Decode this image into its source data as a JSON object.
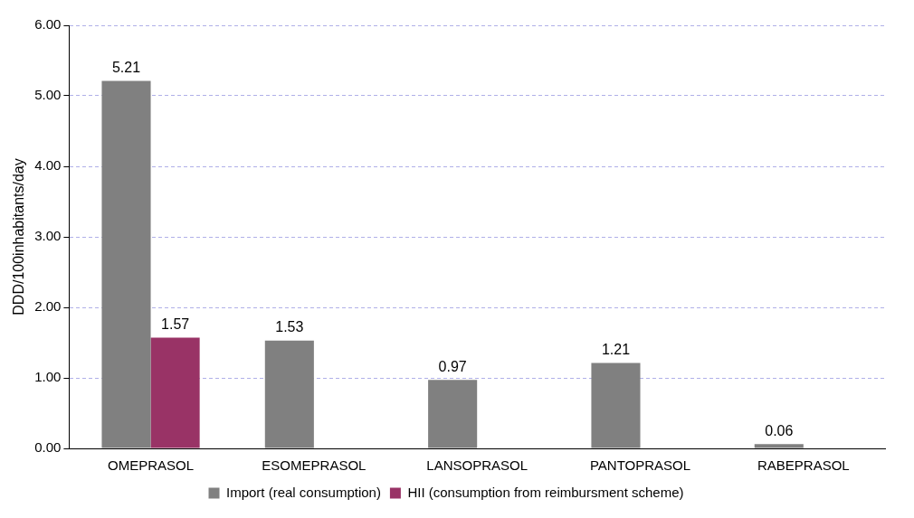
{
  "chart_data": {
    "type": "bar",
    "ylabel": "DDD/100inhabitants/day",
    "categories": [
      "OMEPRASOL",
      "ESOMEPRASOL",
      "LANSOPRASOL",
      "PANTOPRASOL",
      "RABEPRASOL"
    ],
    "series": [
      {
        "name": "Import (real consumption)",
        "color": "#808080",
        "values": [
          5.21,
          1.53,
          0.97,
          1.21,
          0.06
        ],
        "value_labels": [
          "5.21",
          "1.53",
          "0.97",
          "1.21",
          "0.06"
        ]
      },
      {
        "name": "HII (consumption from reimbursment scheme)",
        "color": "#993366",
        "values": [
          1.57,
          0,
          0,
          0,
          0
        ],
        "value_labels": [
          "1.57",
          null,
          null,
          null,
          null
        ]
      }
    ],
    "ylim": [
      0,
      6
    ],
    "yticks": [
      {
        "value": 0,
        "label": "0.00"
      },
      {
        "value": 1,
        "label": "1.00"
      },
      {
        "value": 2,
        "label": "2.00"
      },
      {
        "value": 3,
        "label": "3.00"
      },
      {
        "value": 4,
        "label": "4.00"
      },
      {
        "value": 5,
        "label": "5.00"
      },
      {
        "value": 6,
        "label": "6.00"
      }
    ],
    "grid": "y",
    "legend": "bottom"
  }
}
